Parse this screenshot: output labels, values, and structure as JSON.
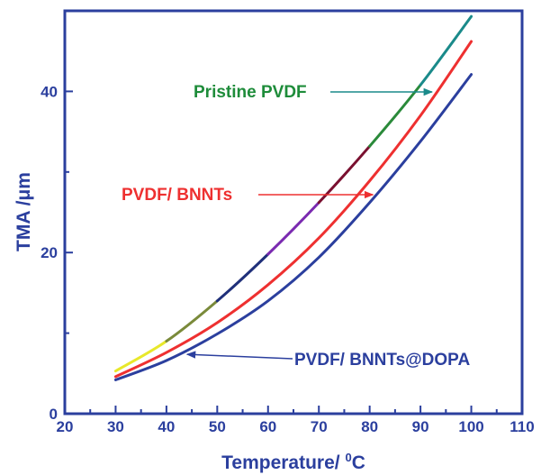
{
  "chart_data": {
    "type": "line",
    "xlabel": "Temperature/ ",
    "xlabel_sup": "0",
    "xlabel_unit": "C",
    "ylabel": "TMA  /μm",
    "xlim": [
      20,
      110
    ],
    "ylim": [
      0,
      50
    ],
    "x_ticks": [
      "20",
      "30",
      "40",
      "50",
      "60",
      "70",
      "80",
      "90",
      "100",
      "110"
    ],
    "y_ticks": [
      "0",
      "20",
      "40"
    ],
    "grid": false,
    "x": [
      30,
      40,
      50,
      60,
      70,
      80,
      90,
      100
    ],
    "series": [
      {
        "name": "Pristine PVDF",
        "color": "#1a8a8a",
        "values": [
          5.3,
          9.0,
          14.0,
          19.8,
          26.2,
          33.2,
          40.8,
          49.3
        ]
      },
      {
        "name": "PVDF/ BNNTs",
        "color": "#ee3030",
        "values": [
          4.6,
          7.6,
          11.3,
          16.0,
          21.8,
          28.9,
          37.0,
          46.2
        ]
      },
      {
        "name": "PVDF/ BNNTs@DOPA",
        "color": "#2b3f9e",
        "values": [
          4.2,
          6.6,
          9.9,
          14.0,
          19.4,
          26.2,
          33.8,
          42.1
        ]
      }
    ],
    "annotations": [
      {
        "text": "Pristine PVDF",
        "color": "#1e8c3a",
        "target_series": 0,
        "target_x": 93
      },
      {
        "text": "PVDF/ BNNTs",
        "color": "#ee3030",
        "target_series": 1,
        "target_x": 81
      },
      {
        "text": "PVDF/ BNNTs@DOPA",
        "color": "#2b3f9e",
        "target_series": 2,
        "target_x": 43
      }
    ],
    "pristine_segment_colors": [
      "#e8e82a",
      "#7a8a3a",
      "#20307a",
      "#7a2ab0",
      "#7a1030",
      "#2a8a3a",
      "#1a8a8a"
    ]
  }
}
